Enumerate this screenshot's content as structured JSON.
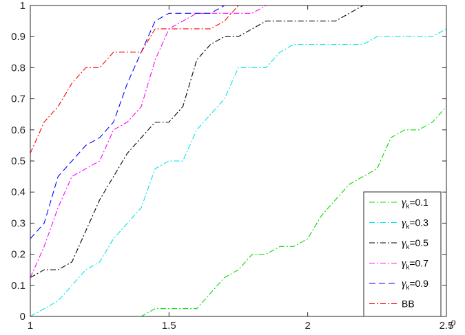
{
  "chart_data": {
    "type": "line",
    "title": "",
    "xlabel": "ρ",
    "ylabel": "",
    "xlim": [
      1,
      2.5
    ],
    "ylim": [
      0,
      1
    ],
    "xticks": [
      1,
      1.5,
      2,
      2.5
    ],
    "xtick_labels": [
      "1",
      "1.5",
      "2",
      "2.5"
    ],
    "yticks": [
      0,
      0.1,
      0.2,
      0.3,
      0.4,
      0.5,
      0.6,
      0.7,
      0.8,
      0.9,
      1
    ],
    "ytick_labels": [
      "0",
      "0.1",
      "0.2",
      "0.3",
      "0.4",
      "0.5",
      "0.6",
      "0.7",
      "0.8",
      "0.9",
      "1"
    ],
    "grid": false,
    "legend_position": "bottom-right",
    "series": [
      {
        "name": "γk=0.1",
        "legend_sym": "γ",
        "legend_sub": "k",
        "legend_rest": "=0.1",
        "color": "#00dd00",
        "dash": "dashdot",
        "x": [
          1,
          1.4,
          1.45,
          1.6,
          1.65,
          1.7,
          1.75,
          1.8,
          1.85,
          1.9,
          1.95,
          2.0,
          2.05,
          2.1,
          2.15,
          2.2,
          2.25,
          2.3,
          2.35,
          2.4,
          2.45,
          2.5
        ],
        "y": [
          0,
          0,
          0.025,
          0.025,
          0.075,
          0.125,
          0.15,
          0.2,
          0.2,
          0.225,
          0.225,
          0.25,
          0.325,
          0.375,
          0.425,
          0.45,
          0.475,
          0.575,
          0.6,
          0.6,
          0.625,
          0.675
        ]
      },
      {
        "name": "γk=0.3",
        "legend_sym": "γ",
        "legend_sub": "k",
        "legend_rest": "=0.3",
        "color": "#00e6e6",
        "dash": "dashdot",
        "x": [
          1,
          1.1,
          1.2,
          1.25,
          1.3,
          1.35,
          1.4,
          1.45,
          1.5,
          1.55,
          1.6,
          1.65,
          1.7,
          1.75,
          1.8,
          1.85,
          1.9,
          1.95,
          2.0,
          2.2,
          2.25,
          2.3,
          2.45,
          2.5
        ],
        "y": [
          0,
          0.05,
          0.15,
          0.175,
          0.25,
          0.3,
          0.35,
          0.475,
          0.5,
          0.5,
          0.6,
          0.65,
          0.7,
          0.8,
          0.8,
          0.8,
          0.85,
          0.875,
          0.875,
          0.875,
          0.9,
          0.9,
          0.9,
          0.925
        ]
      },
      {
        "name": "γk=0.5",
        "legend_sym": "γ",
        "legend_sub": "k",
        "legend_rest": "=0.5",
        "color": "#000000",
        "dash": "dashdot",
        "x": [
          1,
          1.05,
          1.1,
          1.15,
          1.2,
          1.25,
          1.3,
          1.35,
          1.4,
          1.45,
          1.5,
          1.55,
          1.6,
          1.65,
          1.7,
          1.75,
          1.8,
          1.85,
          1.9,
          1.95,
          2.0,
          2.05,
          2.1,
          2.15,
          2.2,
          2.5
        ],
        "y": [
          0.125,
          0.15,
          0.15,
          0.175,
          0.275,
          0.375,
          0.45,
          0.525,
          0.575,
          0.625,
          0.625,
          0.675,
          0.825,
          0.875,
          0.9,
          0.9,
          0.925,
          0.95,
          0.95,
          0.95,
          0.95,
          0.95,
          0.95,
          0.975,
          1,
          1
        ]
      },
      {
        "name": "γk=0.7",
        "legend_sym": "γ",
        "legend_sub": "k",
        "legend_rest": "=0.7",
        "color": "#ff00ff",
        "dash": "dashdot",
        "x": [
          1,
          1.05,
          1.1,
          1.15,
          1.2,
          1.25,
          1.3,
          1.35,
          1.4,
          1.45,
          1.5,
          1.55,
          1.6,
          1.65,
          1.7,
          1.75,
          1.8,
          1.85,
          1.9,
          2.5
        ],
        "y": [
          0.125,
          0.225,
          0.35,
          0.45,
          0.475,
          0.5,
          0.6,
          0.625,
          0.675,
          0.825,
          0.925,
          0.95,
          0.975,
          0.975,
          0.975,
          0.975,
          0.975,
          1,
          1,
          1
        ]
      },
      {
        "name": "γk=0.9",
        "legend_sym": "γ",
        "legend_sub": "k",
        "legend_rest": "=0.9",
        "color": "#0000ff",
        "dash": "dashed",
        "x": [
          1,
          1.05,
          1.1,
          1.15,
          1.2,
          1.25,
          1.3,
          1.35,
          1.4,
          1.45,
          1.5,
          1.55,
          1.6,
          1.65,
          1.7,
          2.5
        ],
        "y": [
          0.25,
          0.3,
          0.45,
          0.5,
          0.55,
          0.575,
          0.625,
          0.75,
          0.85,
          0.95,
          0.975,
          0.975,
          0.975,
          0.975,
          1,
          1
        ]
      },
      {
        "name": "BB",
        "legend_sym": "",
        "legend_sub": "",
        "legend_rest": "BB",
        "color": "#ff0000",
        "dash": "dashdot",
        "x": [
          1,
          1.05,
          1.1,
          1.15,
          1.2,
          1.25,
          1.3,
          1.35,
          1.4,
          1.45,
          1.5,
          1.55,
          1.6,
          1.65,
          1.7,
          1.75,
          2.5
        ],
        "y": [
          0.525,
          0.625,
          0.675,
          0.75,
          0.8,
          0.8,
          0.85,
          0.85,
          0.85,
          0.925,
          0.925,
          0.925,
          0.925,
          0.925,
          0.95,
          1,
          1
        ]
      }
    ]
  }
}
